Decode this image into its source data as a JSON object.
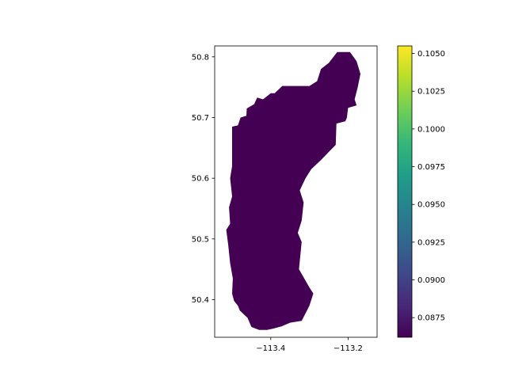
{
  "map": {
    "region_fill": "#440154",
    "xaxis": {
      "range": [
        -113.545,
        -113.125
      ],
      "ticks": [
        {
          "value": -113.4,
          "label": "−113.4"
        },
        {
          "value": -113.2,
          "label": "−113.2"
        }
      ]
    },
    "yaxis": {
      "range": [
        50.338,
        50.818
      ],
      "ticks": [
        {
          "value": 50.4,
          "label": "50.4"
        },
        {
          "value": 50.5,
          "label": "50.5"
        },
        {
          "value": 50.6,
          "label": "50.6"
        },
        {
          "value": 50.7,
          "label": "50.7"
        },
        {
          "value": 50.8,
          "label": "50.8"
        }
      ]
    },
    "outline": [
      [
        -113.5,
        50.685
      ],
      [
        -113.485,
        50.687
      ],
      [
        -113.478,
        50.7
      ],
      [
        -113.463,
        50.703
      ],
      [
        -113.462,
        50.715
      ],
      [
        -113.443,
        50.722
      ],
      [
        -113.435,
        50.733
      ],
      [
        -113.42,
        50.73
      ],
      [
        -113.4,
        50.74
      ],
      [
        -113.39,
        50.74
      ],
      [
        -113.37,
        50.752
      ],
      [
        -113.3,
        50.752
      ],
      [
        -113.28,
        50.76
      ],
      [
        -113.27,
        50.78
      ],
      [
        -113.25,
        50.79
      ],
      [
        -113.228,
        50.808
      ],
      [
        -113.195,
        50.808
      ],
      [
        -113.178,
        50.793
      ],
      [
        -113.168,
        50.772
      ],
      [
        -113.175,
        50.75
      ],
      [
        -113.183,
        50.73
      ],
      [
        -113.178,
        50.72
      ],
      [
        -113.2,
        50.716
      ],
      [
        -113.203,
        50.7
      ],
      [
        -113.207,
        50.694
      ],
      [
        -113.23,
        50.69
      ],
      [
        -113.232,
        50.655
      ],
      [
        -113.255,
        50.64
      ],
      [
        -113.27,
        50.63
      ],
      [
        -113.295,
        50.615
      ],
      [
        -113.31,
        50.6
      ],
      [
        -113.325,
        50.58
      ],
      [
        -113.315,
        50.56
      ],
      [
        -113.32,
        50.53
      ],
      [
        -113.33,
        50.51
      ],
      [
        -113.32,
        50.495
      ],
      [
        -113.327,
        50.45
      ],
      [
        -113.3,
        50.42
      ],
      [
        -113.29,
        50.41
      ],
      [
        -113.3,
        50.39
      ],
      [
        -113.32,
        50.365
      ],
      [
        -113.35,
        50.362
      ],
      [
        -113.372,
        50.356
      ],
      [
        -113.395,
        50.352
      ],
      [
        -113.41,
        50.35
      ],
      [
        -113.43,
        50.35
      ],
      [
        -113.45,
        50.355
      ],
      [
        -113.46,
        50.37
      ],
      [
        -113.48,
        50.382
      ],
      [
        -113.485,
        50.39
      ],
      [
        -113.495,
        50.398
      ],
      [
        -113.5,
        50.41
      ],
      [
        -113.498,
        50.435
      ],
      [
        -113.505,
        50.46
      ],
      [
        -113.51,
        50.49
      ],
      [
        -113.515,
        50.515
      ],
      [
        -113.505,
        50.525
      ],
      [
        -113.508,
        50.552
      ],
      [
        -113.5,
        50.57
      ],
      [
        -113.505,
        50.6
      ],
      [
        -113.5,
        50.62
      ],
      [
        -113.5,
        50.65
      ]
    ]
  },
  "colorbar": {
    "range": [
      0.0862,
      0.1055
    ],
    "ticks": [
      {
        "value": 0.0875,
        "label": "0.0875"
      },
      {
        "value": 0.09,
        "label": "0.0900"
      },
      {
        "value": 0.0925,
        "label": "0.0925"
      },
      {
        "value": 0.095,
        "label": "0.0950"
      },
      {
        "value": 0.0975,
        "label": "0.0975"
      },
      {
        "value": 0.1,
        "label": "0.1000"
      },
      {
        "value": 0.1025,
        "label": "0.1025"
      },
      {
        "value": 0.105,
        "label": "0.1050"
      }
    ],
    "colors": [
      "#440154",
      "#482878",
      "#3e4989",
      "#31688e",
      "#26828e",
      "#1f9e89",
      "#35b779",
      "#6ece58",
      "#b5de2b",
      "#fde725"
    ]
  }
}
